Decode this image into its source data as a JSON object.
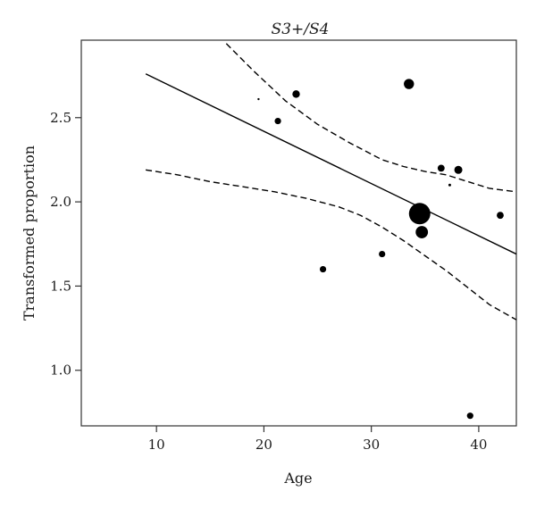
{
  "chart_data": {
    "type": "scatter",
    "title": "S3+/S4",
    "xlabel": "Age",
    "ylabel": "Transformed proportion",
    "xlim": [
      3,
      43.5
    ],
    "ylim": [
      0.67,
      2.96
    ],
    "xticks": [
      10,
      20,
      30,
      40
    ],
    "yticks": [
      1.0,
      1.5,
      2.0,
      2.5
    ],
    "xtick_labels": [
      "10",
      "20",
      "30",
      "40"
    ],
    "ytick_labels": [
      "1.0",
      "1.5",
      "2.0",
      "2.5"
    ],
    "grid": false,
    "legend": "none",
    "points": [
      {
        "x": 19.5,
        "y": 2.61,
        "weight": 0.4
      },
      {
        "x": 21.3,
        "y": 2.48,
        "weight": 1.2
      },
      {
        "x": 23.0,
        "y": 2.64,
        "weight": 1.4
      },
      {
        "x": 25.5,
        "y": 1.6,
        "weight": 1.2
      },
      {
        "x": 31.0,
        "y": 1.69,
        "weight": 1.2
      },
      {
        "x": 33.5,
        "y": 2.7,
        "weight": 1.9
      },
      {
        "x": 34.5,
        "y": 1.93,
        "weight": 4.0
      },
      {
        "x": 34.7,
        "y": 1.82,
        "weight": 2.3
      },
      {
        "x": 36.5,
        "y": 2.2,
        "weight": 1.3
      },
      {
        "x": 37.3,
        "y": 2.1,
        "weight": 0.5
      },
      {
        "x": 38.1,
        "y": 2.19,
        "weight": 1.5
      },
      {
        "x": 39.2,
        "y": 0.73,
        "weight": 1.2
      },
      {
        "x": 42.0,
        "y": 1.92,
        "weight": 1.3
      }
    ],
    "fit_line": {
      "x": [
        9,
        43.5
      ],
      "y": [
        2.76,
        1.69
      ]
    },
    "upper_band": {
      "x": [
        16.5,
        19,
        22,
        25,
        28,
        31,
        33,
        35,
        37,
        39,
        41,
        43.5
      ],
      "y": [
        2.94,
        2.78,
        2.6,
        2.46,
        2.35,
        2.25,
        2.21,
        2.18,
        2.16,
        2.12,
        2.08,
        2.06
      ]
    },
    "lower_band": {
      "x": [
        9,
        12,
        15,
        18,
        21,
        24,
        27,
        29,
        31,
        33,
        35,
        37,
        39,
        41,
        43.5
      ],
      "y": [
        2.19,
        2.16,
        2.12,
        2.09,
        2.06,
        2.02,
        1.97,
        1.92,
        1.85,
        1.77,
        1.68,
        1.59,
        1.49,
        1.39,
        1.3
      ]
    },
    "colors": {
      "points": "#000000",
      "line": "#000000",
      "frame": "#333333"
    }
  }
}
